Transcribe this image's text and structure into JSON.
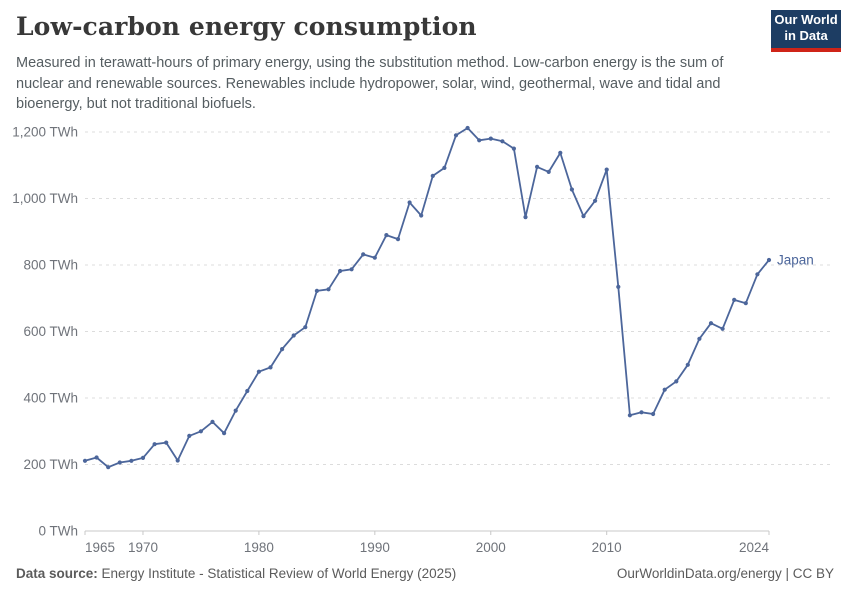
{
  "header": {
    "title": "Low-carbon energy consumption",
    "subtitle": "Measured in terawatt-hours of primary energy, using the substitution method. Low-carbon energy is the sum of nuclear and renewable sources. Renewables include hydropower, solar, wind, geothermal, wave and tidal and bioenergy, but not traditional biofuels.",
    "logo": {
      "line1": "Our World",
      "line2": "in Data",
      "bg_color": "#1d3d63",
      "accent_color": "#cf2418"
    }
  },
  "chart_data": {
    "type": "line",
    "title": "Low-carbon energy consumption",
    "xlabel": "",
    "ylabel": "TWh",
    "xlim": [
      1965,
      2024
    ],
    "ylim": [
      0,
      1200
    ],
    "grid": "dashed-horizontal",
    "legend_position": "end-of-line-label",
    "x_ticks": [
      {
        "value": 1965,
        "label": "1965"
      },
      {
        "value": 1970,
        "label": "1970"
      },
      {
        "value": 1980,
        "label": "1980"
      },
      {
        "value": 1990,
        "label": "1990"
      },
      {
        "value": 2000,
        "label": "2000"
      },
      {
        "value": 2010,
        "label": "2010"
      },
      {
        "value": 2024,
        "label": "2024"
      }
    ],
    "y_ticks": [
      {
        "value": 0,
        "label": "0 TWh"
      },
      {
        "value": 200,
        "label": "200 TWh"
      },
      {
        "value": 400,
        "label": "400 TWh"
      },
      {
        "value": 600,
        "label": "600 TWh"
      },
      {
        "value": 800,
        "label": "800 TWh"
      },
      {
        "value": 1000,
        "label": "1,000 TWh"
      },
      {
        "value": 1200,
        "label": "1,200 TWh"
      }
    ],
    "series": [
      {
        "name": "Japan",
        "color": "#4c669b",
        "x": [
          1965,
          1966,
          1967,
          1968,
          1969,
          1970,
          1971,
          1972,
          1973,
          1974,
          1975,
          1976,
          1977,
          1978,
          1979,
          1980,
          1981,
          1982,
          1983,
          1984,
          1985,
          1986,
          1987,
          1988,
          1989,
          1990,
          1991,
          1992,
          1993,
          1994,
          1995,
          1996,
          1997,
          1998,
          1999,
          2000,
          2001,
          2002,
          2003,
          2004,
          2005,
          2006,
          2007,
          2008,
          2009,
          2010,
          2011,
          2012,
          2013,
          2014,
          2015,
          2016,
          2017,
          2018,
          2019,
          2020,
          2021,
          2022,
          2023,
          2024
        ],
        "values": [
          211,
          221,
          192,
          206,
          211,
          220,
          261,
          266,
          212,
          286,
          300,
          328,
          294,
          362,
          421,
          479,
          492,
          547,
          588,
          613,
          722,
          727,
          782,
          787,
          832,
          822,
          890,
          878,
          988,
          949,
          1068,
          1092,
          1190,
          1212,
          1175,
          1180,
          1172,
          1150,
          944,
          1095,
          1080,
          1137,
          1027,
          947,
          993,
          1087,
          734,
          348,
          357,
          352,
          425,
          450,
          500,
          578,
          625,
          608,
          695,
          685,
          772,
          815
        ]
      }
    ],
    "colors": {
      "gridline": "#dcdcdc",
      "axis": "#c8c8c8",
      "tick_label": "#6f737a"
    }
  },
  "footer": {
    "source_label": "Data source:",
    "source_text": "Energy Institute - Statistical Review of World Energy (2025)",
    "credit": "OurWorldinData.org/energy | CC BY"
  }
}
